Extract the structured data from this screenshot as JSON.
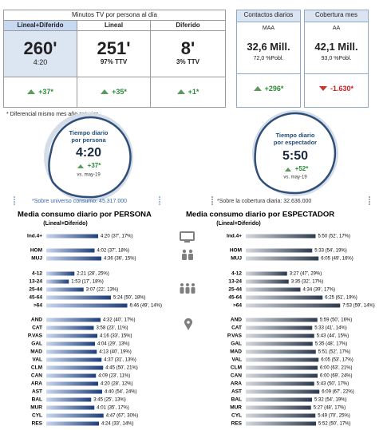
{
  "summary": {
    "tv_minutes": {
      "title": "Minutos TV por persona al día",
      "columns": [
        {
          "header": "Lineal+Diferido",
          "value": "260'",
          "sub": "4:20",
          "diff": "+37*"
        },
        {
          "header": "Lineal",
          "value": "251'",
          "sub": "97% TTV",
          "diff": "+35*"
        },
        {
          "header": "Diferido",
          "value": "8'",
          "sub": "3% TTV",
          "diff": "+1*"
        }
      ]
    },
    "boxes": [
      {
        "header": "Contactos diarios",
        "label": "MAA",
        "value": "32,6 Mill.",
        "sub": "72,0 %Pobl.",
        "diff": "+296*"
      },
      {
        "header": "Cobertura mes",
        "label": "AA",
        "value": "42,1 Mill.",
        "sub": "93,0 %Pobl.",
        "diff": "-1.630*"
      }
    ],
    "footnote": "* Diferencial mismo mes año anterior"
  },
  "circles": [
    {
      "title_lines": [
        "Tiempo diario",
        "por persona"
      ],
      "value": "4:20",
      "diff": "+37*",
      "compare": "vs. may-19"
    },
    {
      "title_lines": [
        "Tiempo diario",
        "por espectador"
      ],
      "value": "5:50",
      "diff": "+52*",
      "compare": "vs. may-19"
    }
  ],
  "notes": [
    "*Sobre universo consumo: 45.317.000",
    "*Sobre la cobertura diaria: 32.636.000"
  ],
  "chart_data": [
    {
      "type": "bar",
      "orientation": "horizontal",
      "title": "Media consumo diario por PERSONA",
      "subtitle": "(Lineal+Diferido)",
      "color": "#1f3f7a",
      "categories": [
        "Ind.4+",
        "HOM",
        "MUJ",
        "4-12",
        "13-24",
        "25-44",
        "45-64",
        ">64",
        "AND",
        "CAT",
        "P.VAS",
        "GAL",
        "MAD",
        "VAL",
        "CLM",
        "CAN",
        "ARA",
        "AST",
        "BAL",
        "MUR",
        "CYL",
        "RES"
      ],
      "values": [
        260,
        242,
        276,
        141,
        113,
        187,
        324,
        406,
        272,
        238,
        256,
        244,
        253,
        277,
        285,
        249,
        260,
        280,
        225,
        241,
        287,
        264
      ],
      "value_labels": [
        "4:20 (37', 17%)",
        "4:02 (37', 18%)",
        "4:36 (36', 15%)",
        "2:21 (28', 25%)",
        "1:53 (17', 18%)",
        "3:07 (22', 13%)",
        "5:24 (50', 18%)",
        "6:46 (49', 14%)",
        "4:32 (40', 17%)",
        "3:58 (23', 11%)",
        "4:16 (33', 15%)",
        "4:04 (29', 13%)",
        "4:13 (40', 19%)",
        "4:37 (31', 13%)",
        "4:45 (50', 21%)",
        "4:09 (23', 11%)",
        "4:20 (28', 12%)",
        "4:40 (54', 24%)",
        "3:45 (25', 13%)",
        "4:01 (35', 17%)",
        "4:47 (67', 30%)",
        "4:24 (33', 14%)"
      ]
    },
    {
      "type": "bar",
      "orientation": "horizontal",
      "title": "Media consumo diario por ESPECTADOR",
      "subtitle": "(Lineal+Diferido)",
      "color": "#2e3b4e",
      "categories": [
        "Ind.4+",
        "HOM",
        "MUJ",
        "4-12",
        "13-24",
        "25-44",
        "45-64",
        ">64",
        "AND",
        "CAT",
        "P.VAS",
        "GAL",
        "MAD",
        "VAL",
        "CLM",
        "CAN",
        "ARA",
        "AST",
        "BAL",
        "MUR",
        "CYL",
        "RES"
      ],
      "values": [
        350,
        333,
        365,
        207,
        215,
        274,
        385,
        473,
        359,
        333,
        343,
        335,
        351,
        365,
        360,
        360,
        343,
        369,
        332,
        327,
        349,
        352
      ],
      "value_labels": [
        "5:50 (52', 17%)",
        "5:33 (54', 19%)",
        "6:05 (49', 16%)",
        "3:27 (47', 29%)",
        "3:35 (32', 17%)",
        "4:34 (39', 17%)",
        "6:25 (61', 19%)",
        "7:53 (59', 14%)",
        "5:59 (50', 16%)",
        "5:33 (41', 14%)",
        "5:43 (44', 15%)",
        "5:35 (48', 17%)",
        "5:51 (52', 17%)",
        "6:05 (53', 17%)",
        "6:00 (63', 21%)",
        "6:00 (69', 24%)",
        "5:43 (50', 17%)",
        "6:09 (67', 22%)",
        "5:32 (54', 19%)",
        "5:27 (48', 17%)",
        "5:49 (70', 25%)",
        "5:52 (50', 17%)"
      ]
    }
  ]
}
